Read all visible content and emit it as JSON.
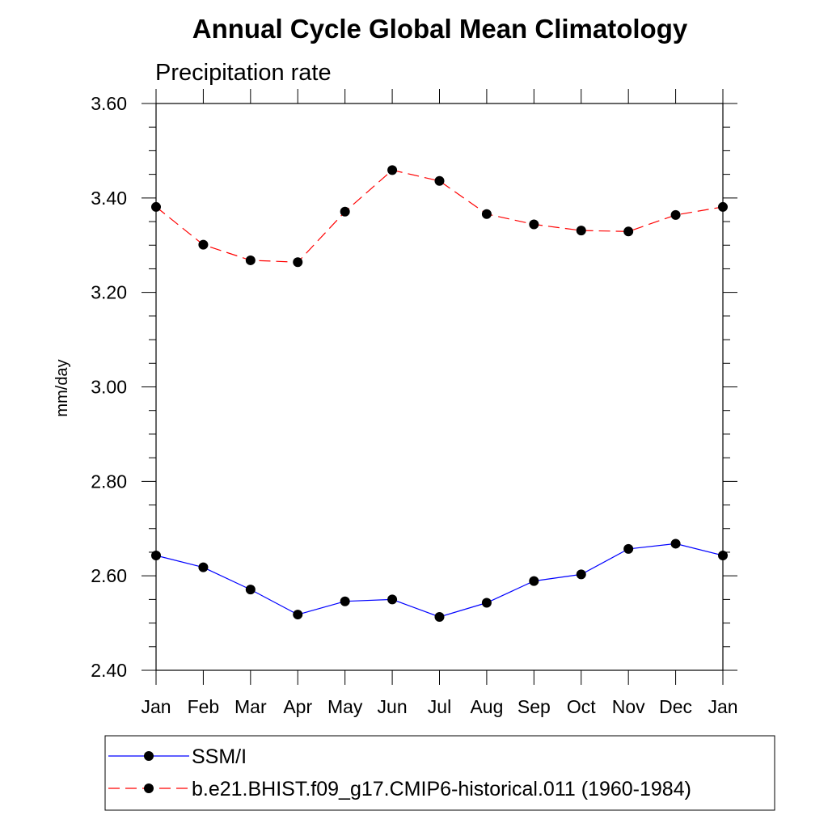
{
  "chart_data": {
    "type": "line",
    "title": "Annual Cycle Global Mean Climatology",
    "subtitle": "Precipitation rate",
    "xlabel": "",
    "ylabel": "mm/day",
    "categories": [
      "Jan",
      "Feb",
      "Mar",
      "Apr",
      "May",
      "Jun",
      "Jul",
      "Aug",
      "Sep",
      "Oct",
      "Nov",
      "Dec",
      "Jan"
    ],
    "ylim": [
      2.4,
      3.6
    ],
    "yticks": [
      "2.40",
      "2.60",
      "2.80",
      "3.00",
      "3.20",
      "3.40",
      "3.60"
    ],
    "y_major_step": 0.2,
    "y_minor_step": 0.05,
    "grid": false,
    "legend_position": "bottom",
    "series": [
      {
        "name": "SSM/I",
        "color": "#0000ff",
        "line_style": "solid",
        "marker": "filled-circle",
        "values": [
          2.643,
          2.618,
          2.571,
          2.518,
          2.546,
          2.55,
          2.513,
          2.543,
          2.589,
          2.603,
          2.657,
          2.668,
          2.643
        ]
      },
      {
        "name": "b.e21.BHIST.f09_g17.CMIP6-historical.011 (1960-1984)",
        "color": "#ff0000",
        "line_style": "dashed",
        "marker": "filled-circle",
        "values": [
          3.381,
          3.301,
          3.268,
          3.264,
          3.371,
          3.459,
          3.436,
          3.366,
          3.344,
          3.331,
          3.329,
          3.364,
          3.381
        ]
      }
    ]
  }
}
